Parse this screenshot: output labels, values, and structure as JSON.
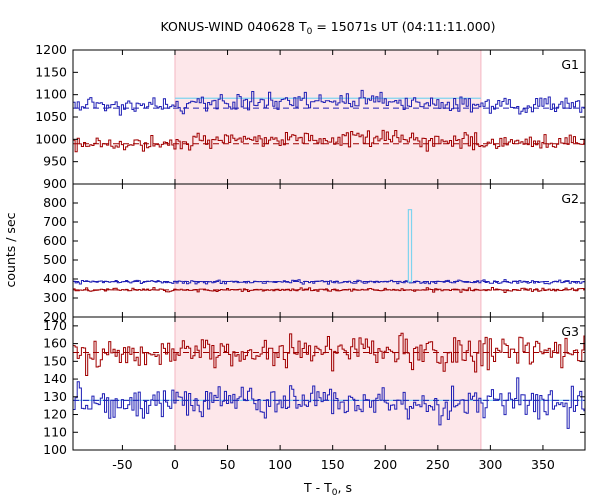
{
  "chart_data": {
    "type": "line",
    "title_main": "KONUS-WIND 040628 T",
    "title_sub": "0",
    "title_rest": " = 15071s UT (04:11:11.000)",
    "xlabel_main": "T - T",
    "xlabel_sub": "0",
    "xlabel_rest": ", s",
    "ylabel": "counts / sec",
    "xlim": [
      -97,
      390
    ],
    "xticks": [
      -50,
      0,
      50,
      100,
      150,
      200,
      250,
      300,
      350
    ],
    "shaded_interval": [
      0,
      291
    ],
    "grid": false,
    "colors": {
      "shade": "#fde7ea",
      "red": "#a00000",
      "blue": "#1f1fb4",
      "cyan": "#7fd3ef",
      "frame": "#000000"
    },
    "panels": [
      {
        "label": "G1",
        "ylim": [
          900,
          1200
        ],
        "yticks": [
          900,
          950,
          1000,
          1050,
          1100,
          1150,
          1200
        ],
        "series": [
          {
            "color": "blue",
            "base": 1075,
            "noise": 14,
            "bump": 15,
            "seed": 11
          },
          {
            "color": "red",
            "base": 992,
            "noise": 12,
            "bump": 15,
            "seed": 23
          }
        ],
        "background_levels": [
          {
            "color": "blue",
            "value": 1070
          },
          {
            "color": "red",
            "value": 990
          }
        ],
        "source_level": {
          "value": 1092,
          "from": 0,
          "to": 291
        }
      },
      {
        "label": "G2",
        "ylim": [
          200,
          900
        ],
        "yticks": [
          200,
          300,
          400,
          500,
          600,
          700,
          800
        ],
        "series": [
          {
            "color": "blue",
            "base": 385,
            "noise": 7,
            "bump": 0,
            "seed": 37
          },
          {
            "color": "red",
            "base": 343,
            "noise": 7,
            "bump": 0,
            "seed": 41
          }
        ],
        "background_levels": [
          {
            "color": "blue",
            "value": 387
          },
          {
            "color": "red",
            "value": 343
          }
        ],
        "spike": {
          "x": 222,
          "width": 3,
          "peak": 765,
          "base": 385
        }
      },
      {
        "label": "G3",
        "ylim": [
          100,
          175
        ],
        "yticks": [
          100,
          110,
          120,
          130,
          140,
          150,
          160,
          170
        ],
        "series": [
          {
            "color": "red",
            "base": 155,
            "noise": 6.5,
            "bump": 0,
            "seed": 53
          },
          {
            "color": "blue",
            "base": 127,
            "noise": 7,
            "bump": 0,
            "seed": 67
          }
        ],
        "background_levels": [
          {
            "color": "red",
            "value": 155
          },
          {
            "color": "blue",
            "value": 128
          }
        ],
        "source_level": {
          "value": 128,
          "from": -97,
          "to": 390
        }
      }
    ]
  }
}
